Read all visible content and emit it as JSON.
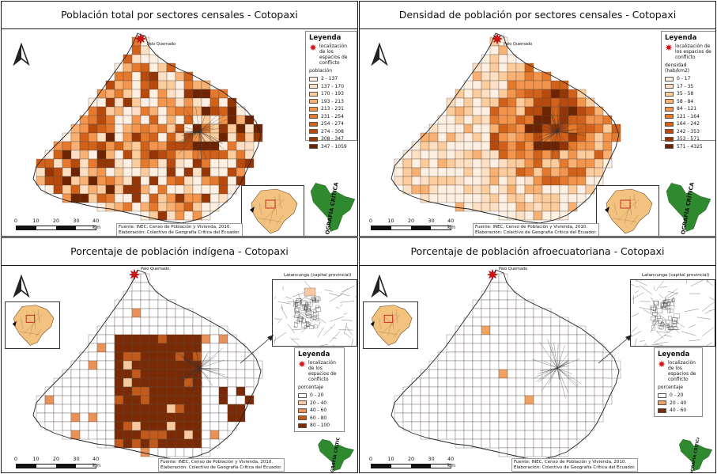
{
  "panels": [
    {
      "title": "Población total por sectores censales - Cotopaxi",
      "legend": {
        "title": "Leyenda",
        "conflict_label": "localización de los espacios de conflicto",
        "subtitle": "población",
        "classes": [
          {
            "label": "2 - 137",
            "color": "#fdf0e2"
          },
          {
            "label": "137 - 170",
            "color": "#fde0c4"
          },
          {
            "label": "170 - 193",
            "color": "#fccc9c"
          },
          {
            "label": "193 - 213",
            "color": "#f9b173"
          },
          {
            "label": "213 - 231",
            "color": "#f3954d"
          },
          {
            "label": "231 - 254",
            "color": "#e57a2e"
          },
          {
            "label": "254 - 274",
            "color": "#d2611a"
          },
          {
            "label": "274 - 308",
            "color": "#b84a0e"
          },
          {
            "label": "308 - 347",
            "color": "#963606"
          },
          {
            "label": "347 - 1059",
            "color": "#6e2402"
          }
        ]
      }
    },
    {
      "title": "Densidad de población por sectores censales - Cotopaxi",
      "legend": {
        "title": "Leyenda",
        "conflict_label": "localización de los espacios de conflicto",
        "subtitle": "densidad (hab/km2)",
        "classes": [
          {
            "label": "0 - 17",
            "color": "#fdf0e2"
          },
          {
            "label": "17 - 35",
            "color": "#fde0c4"
          },
          {
            "label": "35 - 58",
            "color": "#fccc9c"
          },
          {
            "label": "58 - 84",
            "color": "#f9b173"
          },
          {
            "label": "84 - 121",
            "color": "#f3954d"
          },
          {
            "label": "121 - 164",
            "color": "#e57a2e"
          },
          {
            "label": "164 - 242",
            "color": "#d2611a"
          },
          {
            "label": "242 - 353",
            "color": "#b84a0e"
          },
          {
            "label": "353 - 571",
            "color": "#963606"
          },
          {
            "label": "571 - 4325",
            "color": "#6e2402"
          }
        ]
      }
    },
    {
      "title": "Porcentaje de población indígena - Cotopaxi",
      "zoom_label": "Latancunga (capital provincial)",
      "legend": {
        "title": "Leyenda",
        "conflict_label": "localización de los espacios de conflicto",
        "subtitle": "porcentaje",
        "classes": [
          {
            "label": "0 - 20",
            "color": "#ffffff"
          },
          {
            "label": "20 - 40",
            "color": "#f6c9a0"
          },
          {
            "label": "40 - 60",
            "color": "#e8925a"
          },
          {
            "label": "60 - 80",
            "color": "#c25a1c"
          },
          {
            "label": "80 - 100",
            "color": "#7a2a05"
          }
        ]
      }
    },
    {
      "title": "Porcentaje de población afroecuatoriana - Cotopaxi",
      "zoom_label": "Latancunga (capital provincial)",
      "legend": {
        "title": "Leyenda",
        "conflict_label": "localización de los espacios de conflicto",
        "subtitle": "porcentaje",
        "classes": [
          {
            "label": "0 - 20",
            "color": "#ffffff"
          },
          {
            "label": "20 - 40",
            "color": "#f0a25e"
          },
          {
            "label": "40 - 60",
            "color": "#7a2a05"
          }
        ]
      }
    }
  ],
  "place_label": "Palo Quemado",
  "scale": {
    "ticks": [
      "0",
      "10",
      "20",
      "30",
      "40 km"
    ]
  },
  "source": {
    "line1": "Fuente: INEC, Censo de Población y Vivienda, 2010.",
    "line2": "Elaboración: Colectivo de Geografía Crítica del Ecuador."
  },
  "logo_text": "GEOGRAFÍA CRÍTICA"
}
